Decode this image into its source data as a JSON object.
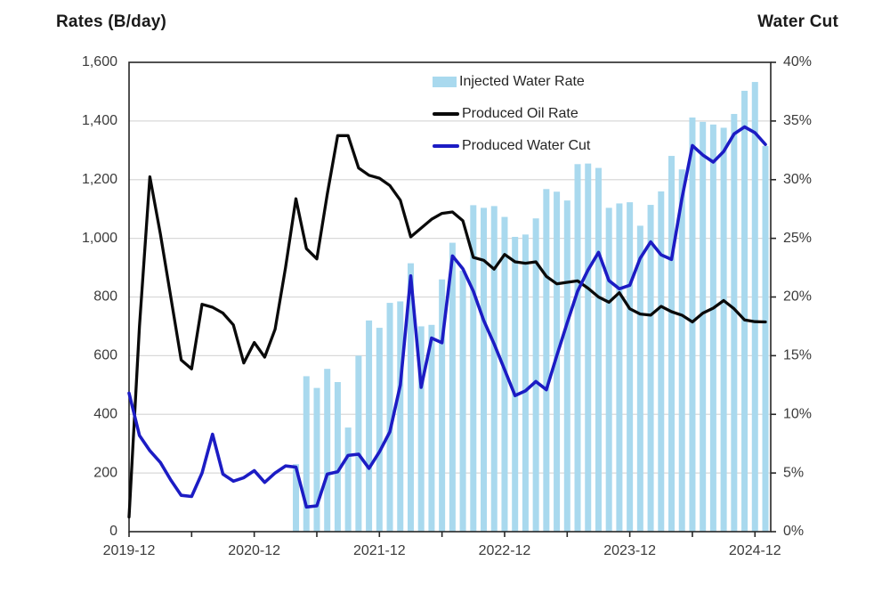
{
  "titles": {
    "left": "Rates (B/day)",
    "right": "Water Cut"
  },
  "legend": [
    {
      "label": "Injected Water Rate",
      "marker": "bar-swatch",
      "color": "#a9d9ee"
    },
    {
      "label": "Produced Oil Rate",
      "marker": "line-swatch",
      "color": "#0a0a0a"
    },
    {
      "label": "Produced Water Cut",
      "marker": "line-swatch",
      "color": "#1c1cc4"
    }
  ],
  "colors": {
    "bar": "#a9d9ee",
    "oil_line": "#0a0a0a",
    "water_cut_line": "#1c1cc4",
    "grid": "#d9d9d9",
    "spine": "#262626",
    "tick_text": "#3b3b3b"
  },
  "chart_data": {
    "type": "combo (bar + 2 lines, dual axis)",
    "x": [
      "2019-12",
      "2020-01",
      "2020-02",
      "2020-03",
      "2020-04",
      "2020-05",
      "2020-06",
      "2020-07",
      "2020-08",
      "2020-09",
      "2020-10",
      "2020-11",
      "2020-12",
      "2021-01",
      "2021-02",
      "2021-03",
      "2021-04",
      "2021-05",
      "2021-06",
      "2021-07",
      "2021-08",
      "2021-09",
      "2021-10",
      "2021-11",
      "2021-12",
      "2022-01",
      "2022-02",
      "2022-03",
      "2022-04",
      "2022-05",
      "2022-06",
      "2022-07",
      "2022-08",
      "2022-09",
      "2022-10",
      "2022-11",
      "2022-12",
      "2023-01",
      "2023-02",
      "2023-03",
      "2023-04",
      "2023-05",
      "2023-06",
      "2023-07",
      "2023-08",
      "2023-09",
      "2023-10",
      "2023-11",
      "2023-12",
      "2024-01",
      "2024-02",
      "2024-03",
      "2024-04",
      "2024-05",
      "2024-06",
      "2024-07",
      "2024-08",
      "2024-09",
      "2024-10",
      "2024-11",
      "2024-12",
      "2025-01"
    ],
    "x_tick_labels": [
      "2019-12",
      "2020-12",
      "2021-12",
      "2022-12",
      "2023-12",
      "2024-12"
    ],
    "series": [
      {
        "name": "Injected Water Rate",
        "type": "bar",
        "axis": "left",
        "color": "#a9d9ee",
        "values": [
          null,
          null,
          null,
          null,
          null,
          null,
          null,
          null,
          null,
          null,
          null,
          null,
          null,
          null,
          null,
          null,
          230,
          530,
          490,
          555,
          510,
          355,
          600,
          720,
          695,
          780,
          785,
          915,
          700,
          705,
          860,
          985,
          890,
          1113,
          1104,
          1110,
          1073,
          1005,
          1013,
          1068,
          1168,
          1159,
          1129,
          1253,
          1255,
          1240,
          1104,
          1119,
          1123,
          1043,
          1114,
          1160,
          1281,
          1235,
          1412,
          1397,
          1388,
          1377,
          1424,
          1503,
          1533,
          1315
        ]
      },
      {
        "name": "Produced Oil Rate",
        "type": "line",
        "axis": "left",
        "color": "#0a0a0a",
        "values": [
          50,
          700,
          1210,
          1015,
          800,
          585,
          555,
          775,
          765,
          745,
          705,
          575,
          645,
          595,
          690,
          900,
          1135,
          965,
          930,
          1150,
          1350,
          1350,
          1240,
          1215,
          1205,
          1180,
          1130,
          1005,
          1035,
          1065,
          1085,
          1090,
          1060,
          935,
          925,
          895,
          945,
          920,
          915,
          920,
          870,
          845,
          850,
          855,
          830,
          800,
          782,
          815,
          760,
          742,
          738,
          768,
          750,
          738,
          715,
          745,
          762,
          788,
          760,
          722,
          716,
          715
        ]
      },
      {
        "name": "Produced Water Cut",
        "type": "line",
        "axis": "right",
        "color": "#1c1cc4",
        "values": [
          11.8,
          8.2,
          6.9,
          5.9,
          4.4,
          3.1,
          3.0,
          5.0,
          8.3,
          4.9,
          4.3,
          4.6,
          5.2,
          4.2,
          5.0,
          5.6,
          5.5,
          2.1,
          2.2,
          4.9,
          5.1,
          6.5,
          6.6,
          5.4,
          6.8,
          8.5,
          12.5,
          21.8,
          12.3,
          16.5,
          16.1,
          23.5,
          22.4,
          20.5,
          18.0,
          16.0,
          13.8,
          11.6,
          12.0,
          12.8,
          12.1,
          15.0,
          17.8,
          20.5,
          22.3,
          23.8,
          21.4,
          20.7,
          21.0,
          23.3,
          24.7,
          23.6,
          23.2,
          28.4,
          32.9,
          32.1,
          31.5,
          32.4,
          33.9,
          34.5,
          34.0,
          33.0
        ]
      }
    ],
    "left_axis": {
      "title": "Rates (B/day)",
      "min": 0,
      "max": 1600,
      "tick_step": 200,
      "tick_labels": [
        "0",
        "200",
        "400",
        "600",
        "800",
        "1,000",
        "1,200",
        "1,400",
        "1,600"
      ]
    },
    "right_axis": {
      "title": "Water Cut",
      "min": 0,
      "max": 40,
      "tick_step": 5,
      "suffix": "%",
      "tick_labels": [
        "0%",
        "5%",
        "10%",
        "15%",
        "20%",
        "25%",
        "30%",
        "35%",
        "40%"
      ]
    },
    "grid": "horizontal only",
    "legend_position": "inside top-center",
    "x_minor_tick_every_months": 6
  }
}
